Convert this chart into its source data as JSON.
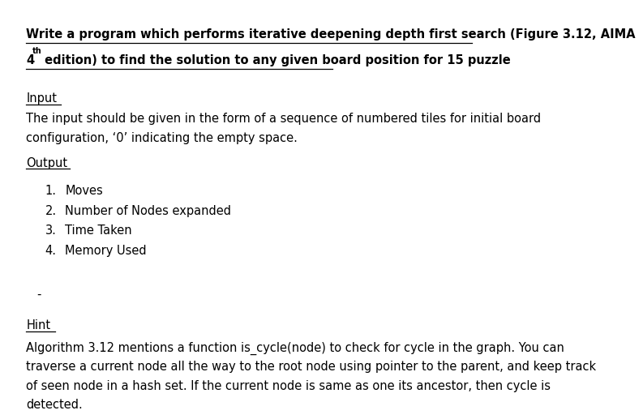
{
  "bg_color": "#ffffff",
  "title_line1": "Write a program which performs iterative deepening depth first search (Figure 3.12, AIMA",
  "title_line2_num": "4",
  "title_line2_super": "th",
  "title_line2_rest": " edition) to find the solution to any given board position for 15 puzzle",
  "input_heading": "Input",
  "input_body_line1": "The input should be given in the form of a sequence of numbered tiles for initial board",
  "input_body_line2": "configuration, ‘0’ indicating the empty space.",
  "output_heading": "Output",
  "output_items": [
    "Moves",
    "Number of Nodes expanded",
    "Time Taken",
    "Memory Used"
  ],
  "hint_heading": "Hint",
  "hint_body_line1": "Algorithm 3.12 mentions a function is_cycle(node) to check for cycle in the graph. You can",
  "hint_body_line2": "traverse a current node all the way to the root node using pointer to the parent, and keep track",
  "hint_body_line3": "of seen node in a hash set. If the current node is same as one its ancestor, then cycle is",
  "hint_body_line4": "detected.",
  "text_color": "#000000",
  "font_size": 10.5,
  "font_family": "DejaVu Sans",
  "dash_char": "-"
}
